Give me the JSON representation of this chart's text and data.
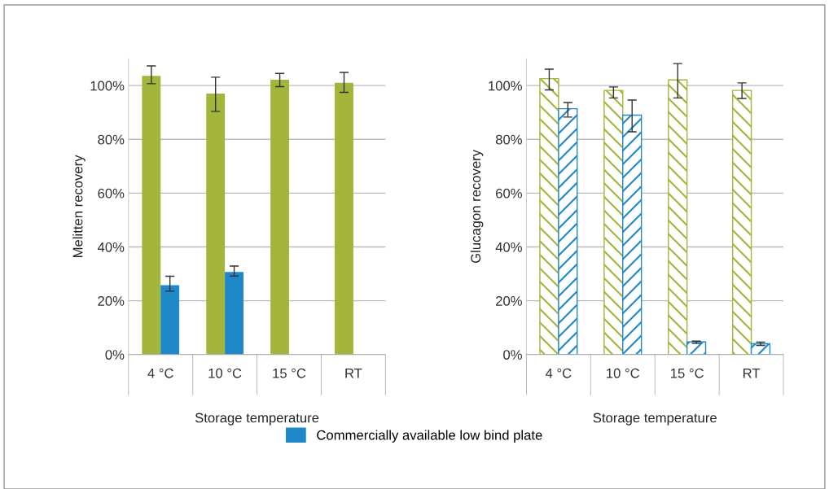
{
  "chart_data": [
    {
      "type": "bar",
      "xlabel": "Storage temperature",
      "ylabel": "Melitten recovery",
      "categories": [
        "4 °C",
        "10 °C",
        "15 °C",
        "RT"
      ],
      "ylim": [
        0,
        110
      ],
      "yticks": [
        {
          "value": 0,
          "label": "0%"
        },
        {
          "value": 20,
          "label": "20%"
        },
        {
          "value": 40,
          "label": "40%"
        },
        {
          "value": 60,
          "label": "60%"
        },
        {
          "value": 80,
          "label": "80%"
        },
        {
          "value": 100,
          "label": "100%"
        }
      ],
      "grid": "y",
      "legend": "bottom",
      "series": [
        {
          "color": "#a3b53a",
          "values": [
            103.6,
            97.0,
            102.2,
            101.0
          ],
          "errors": [
            [
              100.7,
              107.3
            ],
            [
              90.4,
              103.1
            ],
            [
              99.6,
              104.5
            ],
            [
              97.5,
              104.9
            ]
          ]
        },
        {
          "name": "Commercially available low bind plate",
          "color": "#1f88c8",
          "values": [
            25.8,
            30.7,
            null,
            null
          ],
          "errors": [
            [
              23.6,
              29.1
            ],
            [
              29.2,
              32.9
            ],
            null,
            null
          ]
        }
      ]
    },
    {
      "type": "bar",
      "xlabel": "Storage temperature",
      "ylabel": "Glucagon recovery",
      "categories": [
        "4 °C",
        "10 °C",
        "15 °C",
        "RT"
      ],
      "ylim": [
        0,
        110
      ],
      "yticks": [
        {
          "value": 0,
          "label": "0%"
        },
        {
          "value": 20,
          "label": "20%"
        },
        {
          "value": 40,
          "label": "40%"
        },
        {
          "value": 60,
          "label": "60%"
        },
        {
          "value": 80,
          "label": "80%"
        },
        {
          "value": 100,
          "label": "100%"
        }
      ],
      "grid": "y",
      "series": [
        {
          "color": "#a3b53a",
          "values": [
            102.6,
            98.2,
            102.1,
            98.2
          ],
          "errors": [
            [
              98.4,
              106.1
            ],
            [
              95.4,
              99.5
            ],
            [
              95.4,
              108.2
            ],
            [
              95.2,
              101.0
            ]
          ]
        },
        {
          "color": "#1f88c8",
          "values": [
            91.4,
            89.0,
            4.7,
            4.0
          ],
          "errors": [
            [
              88.3,
              93.7
            ],
            [
              82.8,
              94.6
            ],
            [
              4.1,
              5.0
            ],
            [
              3.4,
              4.6
            ]
          ]
        }
      ]
    }
  ]
}
